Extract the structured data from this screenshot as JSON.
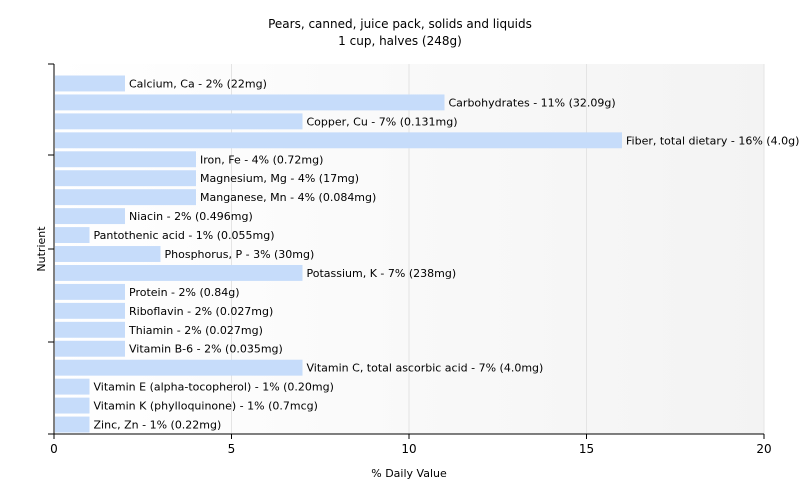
{
  "chart_data": {
    "type": "bar",
    "orientation": "horizontal",
    "title": "Pears, canned, juice pack, solids and liquids",
    "subtitle": "1 cup, halves (248g)",
    "xlabel": "% Daily Value",
    "ylabel": "Nutrient",
    "xlim": [
      0,
      20
    ],
    "xticks": [
      0,
      5,
      10,
      15,
      20
    ],
    "grid": true,
    "bar_color": "#c6dcfa",
    "categories": [
      "Calcium, Ca",
      "Carbohydrates",
      "Copper, Cu",
      "Fiber, total dietary",
      "Iron, Fe",
      "Magnesium, Mg",
      "Manganese, Mn",
      "Niacin",
      "Pantothenic acid",
      "Phosphorus, P",
      "Potassium, K",
      "Protein",
      "Riboflavin",
      "Thiamin",
      "Vitamin B-6",
      "Vitamin C, total ascorbic acid",
      "Vitamin E (alpha-tocopherol)",
      "Vitamin K (phylloquinone)",
      "Zinc, Zn"
    ],
    "values": [
      2,
      11,
      7,
      16,
      4,
      4,
      4,
      2,
      1,
      3,
      7,
      2,
      2,
      2,
      2,
      7,
      1,
      1,
      1
    ],
    "labels": [
      "Calcium, Ca - 2% (22mg)",
      "Carbohydrates - 11% (32.09g)",
      "Copper, Cu - 7% (0.131mg)",
      "Fiber, total dietary - 16% (4.0g)",
      "Iron, Fe - 4% (0.72mg)",
      "Magnesium, Mg - 4% (17mg)",
      "Manganese, Mn - 4% (0.084mg)",
      "Niacin - 2% (0.496mg)",
      "Pantothenic acid - 1% (0.055mg)",
      "Phosphorus, P - 3% (30mg)",
      "Potassium, K - 7% (238mg)",
      "Protein - 2% (0.84g)",
      "Riboflavin - 2% (0.027mg)",
      "Thiamin - 2% (0.027mg)",
      "Vitamin B-6 - 2% (0.035mg)",
      "Vitamin C, total ascorbic acid - 7% (4.0mg)",
      "Vitamin E (alpha-tocopherol) - 1% (0.20mg)",
      "Vitamin K (phylloquinone) - 1% (0.7mcg)",
      "Zinc, Zn - 1% (0.22mg)"
    ]
  }
}
